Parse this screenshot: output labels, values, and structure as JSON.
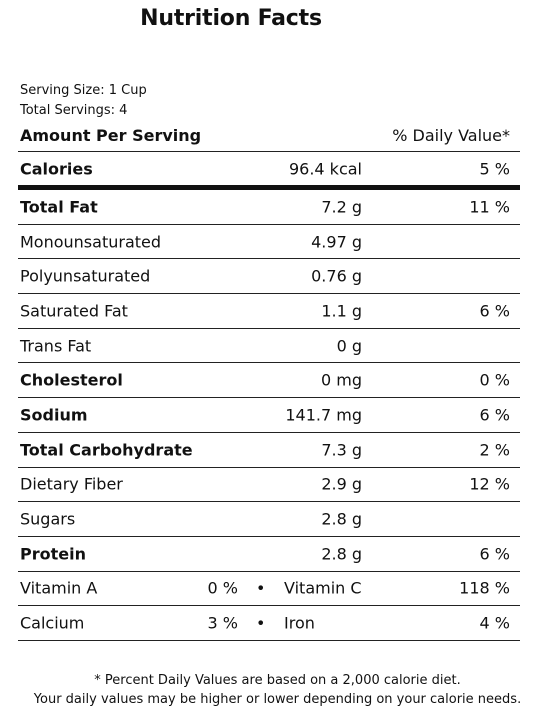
{
  "title": "Nutrition Facts",
  "serving_size": "Serving Size: 1 Cup",
  "total_servings": "Total Servings: 4",
  "header": {
    "amount_label": "Amount Per Serving",
    "dv_label": "% Daily Value*"
  },
  "calories": {
    "name": "Calories",
    "amount": "96.4 kcal",
    "pct": "5 %"
  },
  "rows": [
    {
      "name": "Total Fat",
      "amount": "7.2 g",
      "pct": "11 %",
      "bold": true
    },
    {
      "name": "Monounsaturated",
      "amount": "4.97 g",
      "pct": "",
      "bold": false
    },
    {
      "name": "Polyunsaturated",
      "amount": "0.76 g",
      "pct": "",
      "bold": false
    },
    {
      "name": "Saturated Fat",
      "amount": "1.1 g",
      "pct": "6 %",
      "bold": false
    },
    {
      "name": "Trans Fat",
      "amount": "0 g",
      "pct": "",
      "bold": false
    },
    {
      "name": "Cholesterol",
      "amount": "0 mg",
      "pct": "0 %",
      "bold": true
    },
    {
      "name": "Sodium",
      "amount": "141.7 mg",
      "pct": "6 %",
      "bold": true
    },
    {
      "name": "Total Carbohydrate",
      "amount": "7.3 g",
      "pct": "2 %",
      "bold": true
    },
    {
      "name": "Dietary Fiber",
      "amount": "2.9 g",
      "pct": "12 %",
      "bold": false
    },
    {
      "name": "Sugars",
      "amount": "2.8 g",
      "pct": "",
      "bold": false
    },
    {
      "name": "Protein",
      "amount": "2.8 g",
      "pct": "6 %",
      "bold": true
    }
  ],
  "vitamins": [
    {
      "left_name": "Vitamin A",
      "left_pct": "0 %",
      "bullet": "•",
      "right_name": "Vitamin C",
      "right_pct": "118 %"
    },
    {
      "left_name": "Calcium",
      "left_pct": "3 %",
      "bullet": "•",
      "right_name": "Iron",
      "right_pct": "4 %"
    }
  ],
  "footnote": {
    "line1": "* Percent Daily Values are based on a 2,000 calorie diet.",
    "line2": "Your daily values may be higher or lower depending on your calorie needs."
  }
}
